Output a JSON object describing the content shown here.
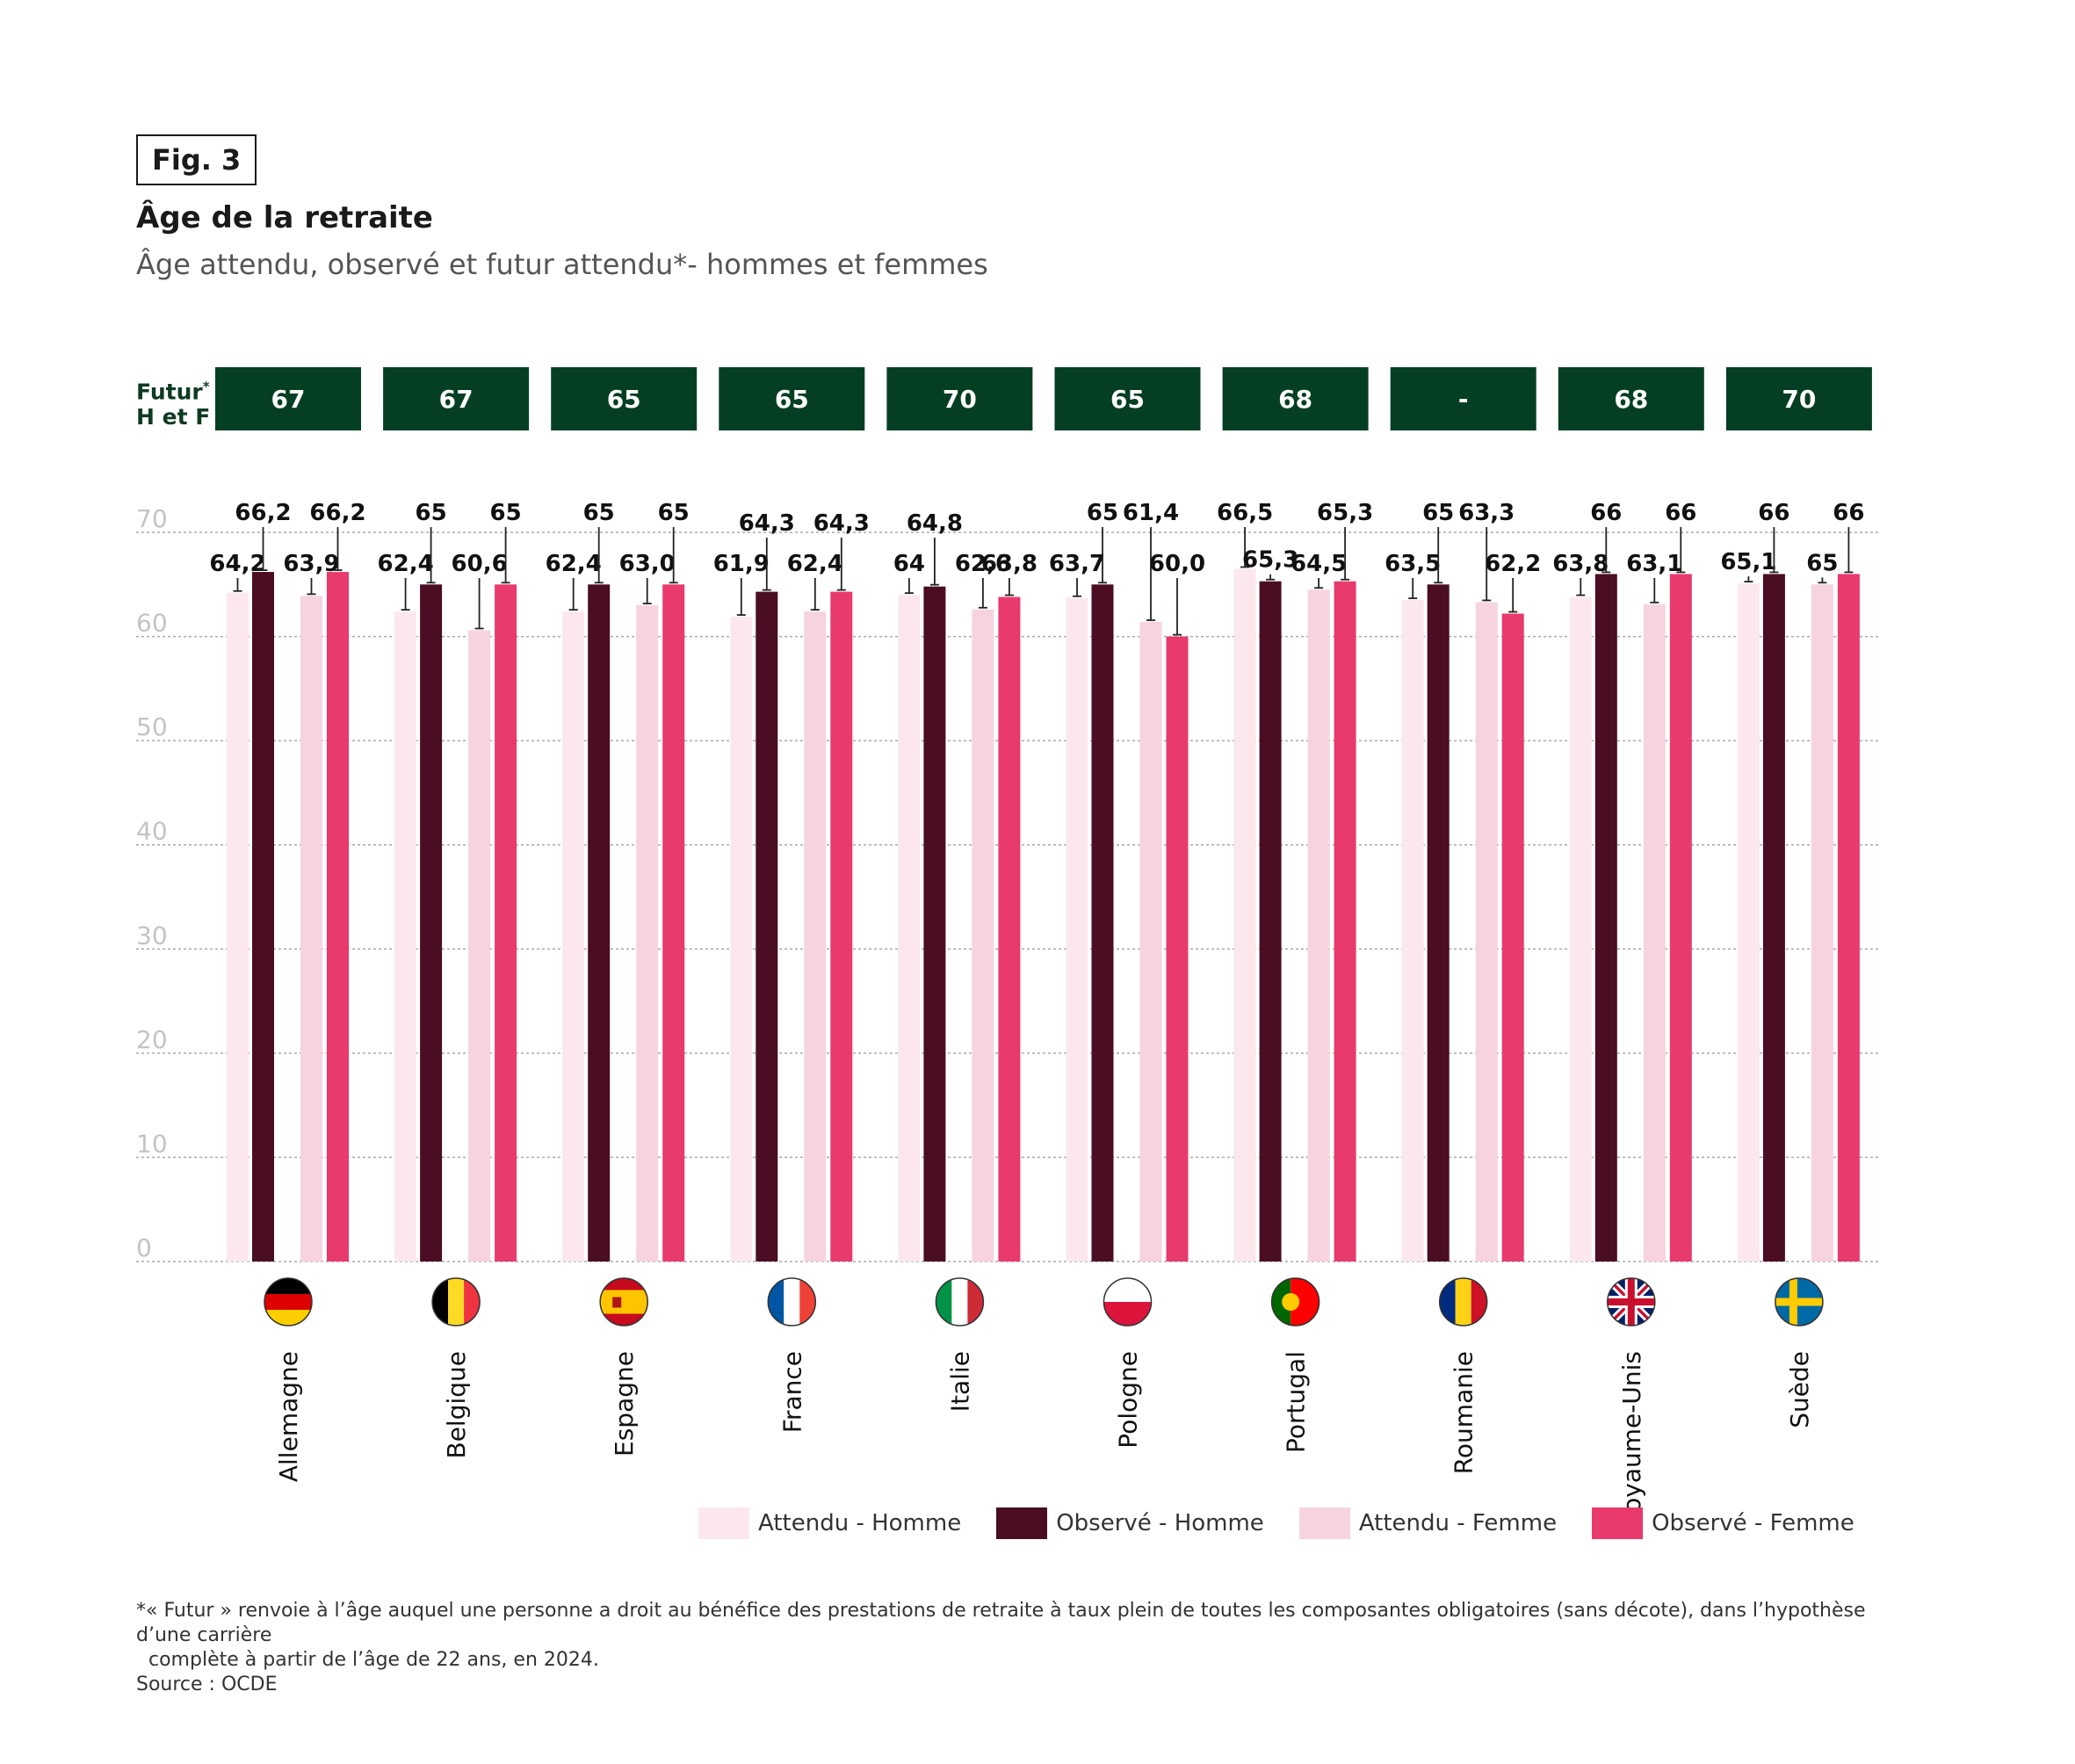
{
  "header": {
    "fig": "Fig. 3",
    "title": "Âge de la retraite",
    "subtitle": "Âge attendu, observé et futur attendu*- hommes et femmes"
  },
  "futur_row": {
    "label_line1": "Futur",
    "label_star": "*",
    "label_line2": "H et F",
    "values": [
      "67",
      "67",
      "65",
      "65",
      "70",
      "65",
      "68",
      "-",
      "68",
      "70"
    ]
  },
  "colors": {
    "attendu_homme": "#fce8ec",
    "observe_homme": "#4a0d24",
    "attendu_femme": "#f7d3e0",
    "observe_femme": "#e83a6d",
    "futur_box": "#043f23",
    "grid": "#aaaaaa",
    "tick": "#c4c4c4"
  },
  "chart_data": {
    "type": "bar",
    "categories": [
      "Allemagne",
      "Belgique",
      "Espagne",
      "France",
      "Italie",
      "Pologne",
      "Portugal",
      "Roumanie",
      "Royaume-Unis",
      "Suède"
    ],
    "flag_icons": [
      "germany-flag-icon",
      "belgium-flag-icon",
      "spain-flag-icon",
      "france-flag-icon",
      "italy-flag-icon",
      "poland-flag-icon",
      "portugal-flag-icon",
      "romania-flag-icon",
      "uk-flag-icon",
      "sweden-flag-icon"
    ],
    "series": [
      {
        "name": "Attendu - Homme",
        "values": [
          64.2,
          62.4,
          62.4,
          61.9,
          64,
          63.7,
          66.5,
          63.5,
          63.8,
          65.1
        ],
        "labels": [
          "64,2",
          "62,4",
          "62,4",
          "61,9",
          "64",
          "63,7",
          "66,5",
          "63,5",
          "63,8",
          "65,1"
        ]
      },
      {
        "name": "Observé - Homme",
        "values": [
          66.2,
          65,
          65,
          64.3,
          64.8,
          65,
          65.3,
          65,
          66,
          66
        ],
        "labels": [
          "66,2",
          "65",
          "65",
          "64,3",
          "64,8",
          "65",
          "65,3",
          "65",
          "66",
          "66"
        ]
      },
      {
        "name": "Attendu - Femme",
        "values": [
          63.9,
          60.6,
          63.0,
          62.4,
          62.6,
          61.4,
          64.5,
          63.3,
          63.1,
          65
        ],
        "labels": [
          "63,9",
          "60,6",
          "63,0",
          "62,4",
          "62,6",
          "61,4",
          "64,5",
          "63,3",
          "63,1",
          "65"
        ]
      },
      {
        "name": "Observé - Femme",
        "values": [
          66.2,
          65,
          65,
          64.3,
          63.8,
          60.0,
          65.3,
          62.2,
          66,
          66
        ],
        "labels": [
          "66,2",
          "65",
          "65",
          "64,3",
          "63,8",
          "60,0",
          "65,3",
          "62,2",
          "66",
          "66"
        ]
      }
    ],
    "yticks": [
      "0",
      "10",
      "20",
      "30",
      "40",
      "50",
      "60",
      "70"
    ],
    "ylim": [
      0,
      70
    ],
    "grid": "dashed horizontal",
    "legend_position": "bottom-right"
  },
  "footnote": {
    "line1": "*« Futur » renvoie à l’âge auquel une personne a droit au bénéfice des prestations de retraite à taux plein de toutes les composantes obligatoires (sans décote), dans l’hypothèse d’une carrière",
    "line2": "complète à partir de l’âge de 22 ans, en 2024.",
    "source": "Source : OCDE"
  }
}
